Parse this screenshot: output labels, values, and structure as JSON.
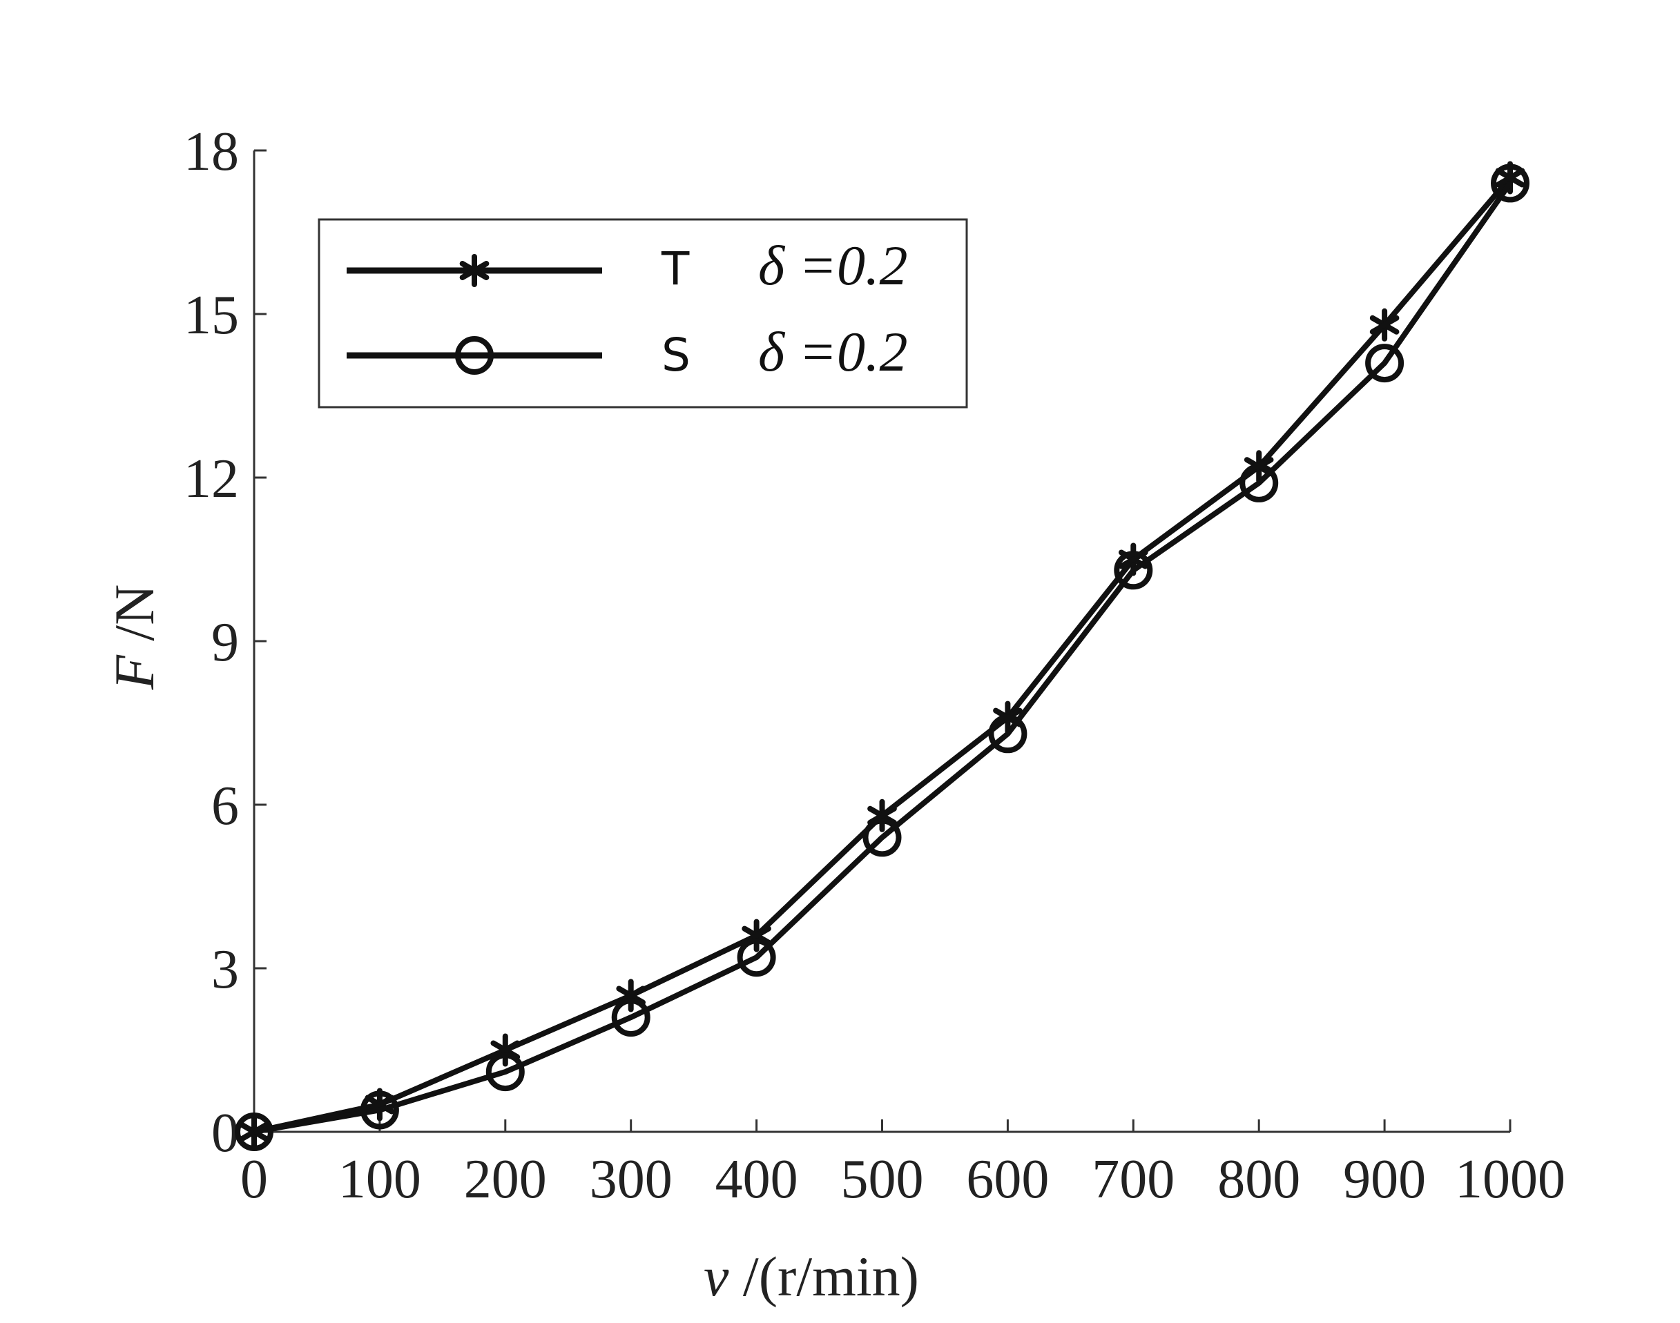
{
  "chart_data": {
    "type": "line",
    "xlabel": {
      "var": "v",
      "unit": " /(r/min)"
    },
    "ylabel": {
      "var": "F",
      "unit": " /N"
    },
    "xlim": [
      0,
      1000
    ],
    "ylim": [
      0,
      18
    ],
    "xticks": [
      "0",
      "100",
      "200",
      "300",
      "400",
      "500",
      "600",
      "700",
      "800",
      "900",
      "1000"
    ],
    "yticks": [
      "0",
      "3",
      "6",
      "9",
      "12",
      "15",
      "18"
    ],
    "legend_position": "top-left",
    "grid": false,
    "x": [
      0,
      100,
      200,
      300,
      400,
      500,
      600,
      700,
      800,
      900,
      1000
    ],
    "series": [
      {
        "name": "T",
        "param": "δ =0.2",
        "marker": "asterisk",
        "values": [
          0,
          0.5,
          1.5,
          2.5,
          3.6,
          5.8,
          7.6,
          10.5,
          12.2,
          14.8,
          17.5
        ]
      },
      {
        "name": "S",
        "param": "δ =0.2",
        "marker": "circle",
        "values": [
          0,
          0.4,
          1.1,
          2.1,
          3.2,
          5.4,
          7.3,
          10.3,
          11.9,
          14.1,
          17.4
        ]
      }
    ],
    "line_color": "#111111"
  }
}
